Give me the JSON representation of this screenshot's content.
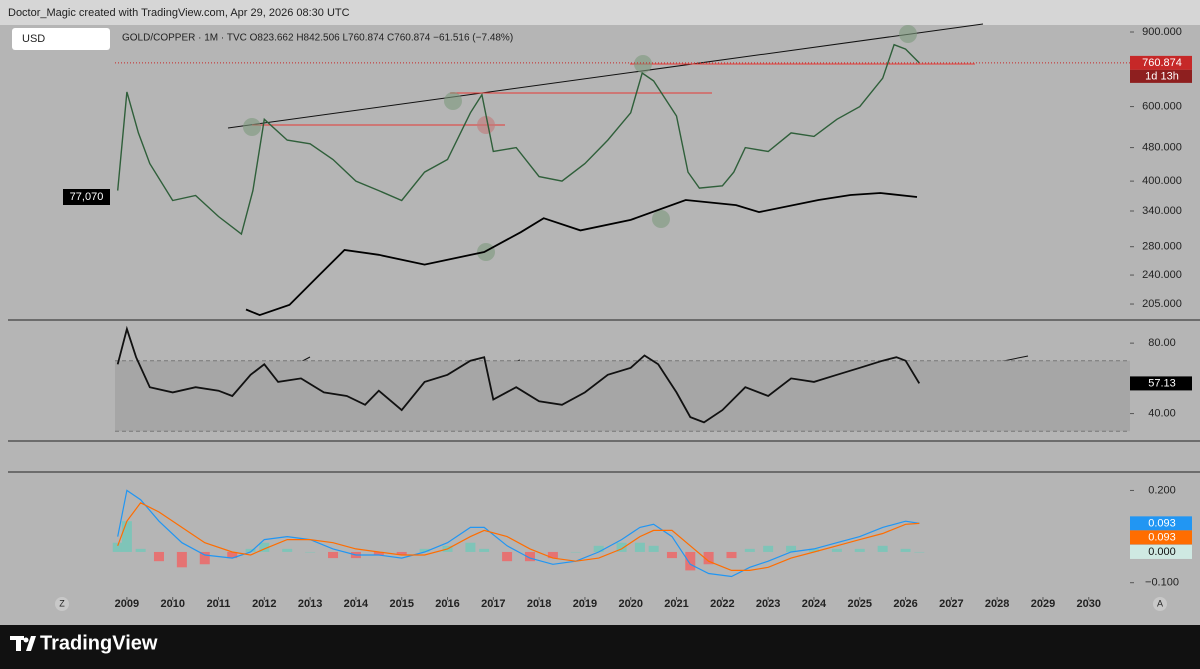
{
  "header": {
    "credit": "Doctor_Magic created with TradingView.com, Apr 29, 2026 08:30 UTC"
  },
  "controls": {
    "left": "Z",
    "right": "A"
  },
  "footer": {
    "brand": "TradingView"
  },
  "chart_data": [
    {
      "type": "line",
      "title": "GOLD/COPPER · 1M · TVC   O823.662  H842.506  L760.874  C760.874  −61.516 (−7.48%)",
      "currency": "USD",
      "log_scale": true,
      "xlim": [
        2008.74,
        2030.9
      ],
      "ylim": [
        190,
        935
      ],
      "yticks": [
        {
          "value": 900,
          "label": "900.000"
        },
        {
          "value": 600,
          "label": "600.000"
        },
        {
          "value": 480,
          "label": "480.000"
        },
        {
          "value": 400,
          "label": "400.000"
        },
        {
          "value": 340,
          "label": "340.000"
        },
        {
          "value": 280,
          "label": "280.000"
        },
        {
          "value": 240,
          "label": "240.000"
        },
        {
          "value": 205,
          "label": "205.000"
        }
      ],
      "series": [
        {
          "color": "#2f5f3a",
          "x": [
            2008.8,
            2009.0,
            2009.25,
            2009.5,
            2010.0,
            2010.5,
            2011.0,
            2011.5,
            2011.75,
            2012.0,
            2012.5,
            2013.0,
            2013.5,
            2014.0,
            2014.5,
            2015.0,
            2015.5,
            2016.0,
            2016.5,
            2016.75,
            2017.0,
            2017.5,
            2018.0,
            2018.5,
            2019.0,
            2019.5,
            2020.0,
            2020.25,
            2020.5,
            2021.0,
            2021.25,
            2021.5,
            2022.0,
            2022.25,
            2022.5,
            2023.0,
            2023.5,
            2024.0,
            2024.5,
            2025.0,
            2025.5,
            2025.75,
            2026.0,
            2026.3
          ],
          "values": [
            380,
            650,
            520,
            440,
            360,
            370,
            330,
            300,
            380,
            560,
            500,
            490,
            450,
            400,
            380,
            360,
            420,
            450,
            580,
            640,
            470,
            480,
            410,
            400,
            440,
            500,
            580,
            720,
            690,
            570,
            420,
            385,
            390,
            420,
            480,
            470,
            520,
            510,
            560,
            600,
            700,
            840,
            820,
            760.874
          ]
        },
        {
          "color": "#000000",
          "x": [
            2011.6,
            2011.9,
            2012.55,
            2013.2,
            2013.75,
            2014.5,
            2015.5,
            2016.8,
            2017.6,
            2018.1,
            2018.9,
            2020.0,
            2021.2,
            2022.3,
            2022.8,
            2024.1,
            2024.8,
            2025.45,
            2026.25
          ],
          "values": [
            199,
            193,
            204,
            240,
            275,
            268,
            254,
            272,
            303,
            327,
            306,
            324,
            361,
            351,
            338,
            361,
            371,
            375,
            367
          ]
        }
      ],
      "last": 760.874,
      "last_color": "#c62828",
      "countdown": "1d 13h",
      "overlay_label": "77,070"
    },
    {
      "type": "line",
      "xlim": [
        2008.74,
        2030.9
      ],
      "ylim": [
        25,
        92
      ],
      "yticks": [
        {
          "value": 80,
          "label": "80.00"
        },
        {
          "value": 40,
          "label": "40.00"
        }
      ],
      "band": [
        30,
        70
      ],
      "series": [
        {
          "color": "#111111",
          "x": [
            2008.8,
            2009.0,
            2009.2,
            2009.5,
            2010.0,
            2010.5,
            2011.0,
            2011.3,
            2011.7,
            2012.0,
            2012.3,
            2012.8,
            2013.3,
            2013.8,
            2014.2,
            2014.5,
            2015.0,
            2015.5,
            2016.0,
            2016.5,
            2016.8,
            2017.0,
            2017.5,
            2018.0,
            2018.5,
            2019.0,
            2019.5,
            2020.0,
            2020.3,
            2020.6,
            2021.0,
            2021.3,
            2021.6,
            2022.0,
            2022.5,
            2023.0,
            2023.5,
            2024.0,
            2024.5,
            2025.0,
            2025.5,
            2025.8,
            2026.0,
            2026.3
          ],
          "values": [
            68,
            88,
            72,
            55,
            52,
            55,
            53,
            50,
            62,
            68,
            58,
            60,
            52,
            50,
            45,
            53,
            42,
            58,
            62,
            70,
            72,
            48,
            55,
            47,
            45,
            52,
            62,
            66,
            73,
            68,
            52,
            38,
            35,
            42,
            55,
            50,
            60,
            58,
            62,
            66,
            70,
            72,
            70,
            57.13
          ]
        }
      ],
      "last": 57.13,
      "last_color": "#000000"
    },
    {
      "type": "macd",
      "xlim": [
        2008.74,
        2030.9
      ],
      "ylim": [
        -0.14,
        0.26
      ],
      "yticks": [
        {
          "value": 0.2,
          "label": "0.200"
        },
        {
          "value": -0.1,
          "label": "−0.100"
        }
      ],
      "xticks": [
        2009,
        2010,
        2011,
        2012,
        2013,
        2014,
        2015,
        2016,
        2017,
        2018,
        2019,
        2020,
        2021,
        2022,
        2023,
        2024,
        2025,
        2026,
        2027,
        2028,
        2029,
        2030
      ],
      "x": [
        2008.8,
        2009.0,
        2009.3,
        2009.7,
        2010.2,
        2010.7,
        2011.3,
        2011.7,
        2012.0,
        2012.5,
        2013.0,
        2013.5,
        2014.0,
        2014.5,
        2015.0,
        2015.5,
        2016.0,
        2016.5,
        2016.8,
        2017.3,
        2017.8,
        2018.3,
        2018.8,
        2019.3,
        2019.8,
        2020.2,
        2020.5,
        2020.9,
        2021.3,
        2021.7,
        2022.2,
        2022.6,
        2023.0,
        2023.5,
        2024.0,
        2024.5,
        2025.0,
        2025.5,
        2026.0,
        2026.3
      ],
      "series": [
        {
          "kind": "histogram",
          "colors": [
            "#7fc4b8",
            "#e57373"
          ],
          "values": [
            0.03,
            0.1,
            0.01,
            -0.03,
            -0.05,
            -0.04,
            -0.02,
            0.01,
            0.03,
            0.01,
            0,
            -0.02,
            -0.02,
            -0.01,
            -0.01,
            0.01,
            0.02,
            0.03,
            0.01,
            -0.03,
            -0.03,
            -0.02,
            0,
            0.02,
            0.03,
            0.03,
            0.02,
            -0.02,
            -0.06,
            -0.04,
            -0.02,
            0.01,
            0.02,
            0.02,
            0.01,
            0.01,
            0.01,
            0.02,
            0.01,
            0
          ]
        },
        {
          "kind": "line",
          "color": "#2196f3",
          "values": [
            0.05,
            0.2,
            0.17,
            0.1,
            0.03,
            -0.01,
            -0.02,
            0.0,
            0.04,
            0.05,
            0.04,
            0.01,
            -0.01,
            -0.01,
            -0.02,
            0.0,
            0.03,
            0.08,
            0.08,
            0.02,
            -0.02,
            -0.04,
            -0.03,
            0.0,
            0.04,
            0.08,
            0.09,
            0.05,
            -0.04,
            -0.07,
            -0.08,
            -0.05,
            -0.03,
            0.0,
            0.01,
            0.03,
            0.05,
            0.08,
            0.1,
            0.093
          ]
        },
        {
          "kind": "line",
          "color": "#ff6d00",
          "values": [
            0.02,
            0.1,
            0.16,
            0.13,
            0.08,
            0.03,
            0.0,
            -0.01,
            0.01,
            0.04,
            0.04,
            0.03,
            0.01,
            0.0,
            -0.01,
            -0.01,
            0.01,
            0.05,
            0.07,
            0.05,
            0.01,
            -0.02,
            -0.03,
            -0.02,
            0.01,
            0.05,
            0.07,
            0.07,
            0.02,
            -0.03,
            -0.06,
            -0.06,
            -0.05,
            -0.02,
            0.0,
            0.02,
            0.04,
            0.06,
            0.09,
            0.093
          ]
        }
      ],
      "last_labels": [
        0.093,
        0.093,
        {
          "value": 0,
          "label": "0.000"
        }
      ],
      "last_label_colors": [
        "#2196f3",
        "#ff6d00",
        "#cfe9e2"
      ],
      "last_label_text_colors": [
        "#ffffff",
        "#ffffff",
        "#111111"
      ]
    }
  ]
}
